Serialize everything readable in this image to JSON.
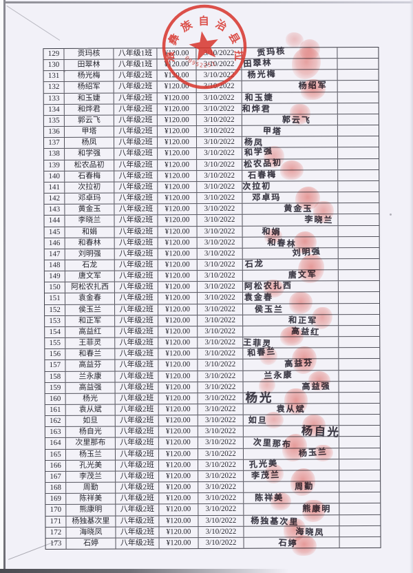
{
  "stamp": {
    "arc_text": "蒗彝族自治县拉伯",
    "serial_number": "00952251",
    "color": "#d8352c"
  },
  "table": {
    "rows": [
      {
        "no": "129",
        "name": "贡玛核",
        "class_name": "八年级1班",
        "amount": "¥120.00",
        "date": "3/10/2022",
        "signature": "贡玛核",
        "sig_dx": 22
      },
      {
        "no": "130",
        "name": "田翠林",
        "class_name": "八年级1班",
        "amount": "¥120.00",
        "date": "3/10/2022",
        "signature": "田翠林",
        "sig_dx": 2
      },
      {
        "no": "131",
        "name": "杨光梅",
        "class_name": "八年级2班",
        "amount": "¥120.00",
        "date": "3/10/2022",
        "signature": "杨光梅",
        "sig_dx": 8
      },
      {
        "no": "132",
        "name": "杨绍军",
        "class_name": "八年级2班",
        "amount": "¥120.00",
        "date": "3/10/2022",
        "signature": "杨绍军",
        "sig_dx": 82
      },
      {
        "no": "133",
        "name": "和玉婕",
        "class_name": "八年级2班",
        "amount": "¥120.00",
        "date": "3/10/2022",
        "signature": "和玉婕",
        "sig_dx": 4
      },
      {
        "no": "134",
        "name": "和烨君",
        "class_name": "八年级2班",
        "amount": "¥120.00",
        "date": "3/10/2022",
        "signature": "和烨君",
        "sig_dx": 0
      },
      {
        "no": "135",
        "name": "郭云飞",
        "class_name": "八年级2班",
        "amount": "¥120.00",
        "date": "3/10/2022",
        "signature": "郭云飞",
        "sig_dx": 58
      },
      {
        "no": "136",
        "name": "甲塔",
        "class_name": "八年级2班",
        "amount": "¥120.00",
        "date": "3/10/2022",
        "signature": "甲塔",
        "sig_dx": 30
      },
      {
        "no": "137",
        "name": "杨凤",
        "class_name": "八年级2班",
        "amount": "¥120.00",
        "date": "3/10/2022",
        "signature": "杨凤",
        "sig_dx": 3
      },
      {
        "no": "138",
        "name": "和学强",
        "class_name": "八年级2班",
        "amount": "¥120.00",
        "date": "3/10/2022",
        "signature": "和学强",
        "sig_dx": 3
      },
      {
        "no": "139",
        "name": "松农品初",
        "class_name": "八年级2班",
        "amount": "¥120.00",
        "date": "3/10/2022",
        "signature": "松农品初",
        "sig_dx": 2
      },
      {
        "no": "140",
        "name": "石春梅",
        "class_name": "八年级2班",
        "amount": "¥120.00",
        "date": "3/10/2022",
        "signature": "石春梅",
        "sig_dx": 8
      },
      {
        "no": "141",
        "name": "次拉初",
        "class_name": "八年级2班",
        "amount": "¥120.00",
        "date": "3/10/2022",
        "signature": "次拉初",
        "sig_dx": 0
      },
      {
        "no": "142",
        "name": "邓卓玛",
        "class_name": "八年级2班",
        "amount": "¥120.00",
        "date": "3/10/2022",
        "signature": "邓卓玛",
        "sig_dx": 14
      },
      {
        "no": "143",
        "name": "黄金玉",
        "class_name": "八年级2班",
        "amount": "¥120.00",
        "date": "3/10/2022",
        "signature": "黄金玉",
        "sig_dx": 60
      },
      {
        "no": "144",
        "name": "李晓兰",
        "class_name": "八年级2班",
        "amount": "¥120.00",
        "date": "3/10/2022",
        "signature": "李晓兰",
        "sig_dx": 90
      },
      {
        "no": "145",
        "name": "和娟",
        "class_name": "八年级2班",
        "amount": "¥120.00",
        "date": "3/10/2022",
        "signature": "和娟",
        "sig_dx": 28
      },
      {
        "no": "146",
        "name": "和春林",
        "class_name": "八年级2班",
        "amount": "¥120.00",
        "date": "3/10/2022",
        "signature": "和春林",
        "sig_dx": 36
      },
      {
        "no": "147",
        "name": "刘明强",
        "class_name": "八年级2班",
        "amount": "¥120.00",
        "date": "3/10/2022",
        "signature": "刘明强",
        "sig_dx": 72
      },
      {
        "no": "148",
        "name": "石龙",
        "class_name": "八年级2班",
        "amount": "¥120.00",
        "date": "3/10/2022",
        "signature": "石龙",
        "sig_dx": 3
      },
      {
        "no": "149",
        "name": "唐文军",
        "class_name": "八年级2班",
        "amount": "¥120.00",
        "date": "3/10/2022",
        "signature": "唐文军",
        "sig_dx": 66
      },
      {
        "no": "150",
        "name": "阿松农扎西",
        "class_name": "八年级2班",
        "amount": "¥120.00",
        "date": "3/10/2022",
        "signature": "阿松农扎西",
        "sig_dx": 2
      },
      {
        "no": "151",
        "name": "袁金春",
        "class_name": "八年级2班",
        "amount": "¥120.00",
        "date": "3/10/2022",
        "signature": "袁金春",
        "sig_dx": 2
      },
      {
        "no": "152",
        "name": "侯玉兰",
        "class_name": "八年级2班",
        "amount": "¥120.00",
        "date": "3/10/2022",
        "signature": "侯玉兰",
        "sig_dx": 17
      },
      {
        "no": "153",
        "name": "和正军",
        "class_name": "八年级2班",
        "amount": "¥120.00",
        "date": "3/10/2022",
        "signature": "和正军",
        "sig_dx": 66
      },
      {
        "no": "154",
        "name": "高益红",
        "class_name": "八年级2班",
        "amount": "¥120.00",
        "date": "3/10/2022",
        "signature": "高益红",
        "sig_dx": 70
      },
      {
        "no": "155",
        "name": "王菲灵",
        "class_name": "八年级2班",
        "amount": "¥120.00",
        "date": "3/10/2022",
        "signature": "王菲灵",
        "sig_dx": 0
      },
      {
        "no": "156",
        "name": "和春兰",
        "class_name": "八年级2班",
        "amount": "¥120.00",
        "date": "3/10/2022",
        "signature": "和春兰",
        "sig_dx": 6
      },
      {
        "no": "157",
        "name": "高益芬",
        "class_name": "八年级2班",
        "amount": "¥120.00",
        "date": "3/10/2022",
        "signature": "高益芬",
        "sig_dx": 60
      },
      {
        "no": "158",
        "name": "兰永康",
        "class_name": "八年级2班",
        "amount": "¥120.00",
        "date": "3/10/2022",
        "signature": "兰永康",
        "sig_dx": 30
      },
      {
        "no": "159",
        "name": "高益强",
        "class_name": "八年级2班",
        "amount": "¥120.00",
        "date": "3/10/2022",
        "signature": "高益强",
        "sig_dx": 85
      },
      {
        "no": "160",
        "name": "杨光",
        "class_name": "八年级2班",
        "amount": "¥120.00",
        "date": "3/10/2022",
        "signature": "杨光",
        "sig_dx": 3,
        "sig_scale": 1.45
      },
      {
        "no": "161",
        "name": "袁从斌",
        "class_name": "八年级2班",
        "amount": "¥120.00",
        "date": "3/10/2022",
        "signature": "袁从斌",
        "sig_dx": 48
      },
      {
        "no": "162",
        "name": "如旦",
        "class_name": "八年级2班",
        "amount": "¥120.00",
        "date": "3/10/2022",
        "signature": "如旦",
        "sig_dx": 7
      },
      {
        "no": "163",
        "name": "杨自光",
        "class_name": "八年级2班",
        "amount": "¥120.00",
        "date": "3/10/2022",
        "signature": "杨自光",
        "sig_dx": 84,
        "sig_scale": 1.35
      },
      {
        "no": "164",
        "name": "次里那布",
        "class_name": "八年级2班",
        "amount": "¥120.00",
        "date": "3/10/2022",
        "signature": "次里那布",
        "sig_dx": 14
      },
      {
        "no": "165",
        "name": "杨玉兰",
        "class_name": "八年级2班",
        "amount": "¥120.00",
        "date": "3/10/2022",
        "signature": "杨玉兰",
        "sig_dx": 80
      },
      {
        "no": "166",
        "name": "孔光美",
        "class_name": "八年级2班",
        "amount": "¥120.00",
        "date": "3/10/2022",
        "signature": "孔光美",
        "sig_dx": 8
      },
      {
        "no": "167",
        "name": "李茂兰",
        "class_name": "八年级2班",
        "amount": "¥120.00",
        "date": "3/10/2022",
        "signature": "李茂兰",
        "sig_dx": 11
      },
      {
        "no": "168",
        "name": "周勤",
        "class_name": "八年级2班",
        "amount": "¥120.00",
        "date": "3/10/2022",
        "signature": "周勤",
        "sig_dx": 74
      },
      {
        "no": "169",
        "name": "陈祥美",
        "class_name": "八年级2班",
        "amount": "¥120.00",
        "date": "3/10/2022",
        "signature": "陈祥美",
        "sig_dx": 16
      },
      {
        "no": "170",
        "name": "熊康明",
        "class_name": "八年级2班",
        "amount": "¥120.00",
        "date": "3/10/2022",
        "signature": "熊康明",
        "sig_dx": 85
      },
      {
        "no": "171",
        "name": "杨独基次里",
        "class_name": "八年级2班",
        "amount": "¥120.00",
        "date": "3/10/2022",
        "signature": "杨独基次里",
        "sig_dx": 10
      },
      {
        "no": "172",
        "name": "海晓凤",
        "class_name": "八年级2班",
        "amount": "¥120.00",
        "date": "3/10/2022",
        "signature": "海晓凤",
        "sig_dx": 75
      },
      {
        "no": "173",
        "name": "石婷",
        "class_name": "八年级2班",
        "amount": "¥120.00",
        "date": "3/10/2022",
        "signature": "石婷",
        "sig_dx": 50
      }
    ]
  }
}
